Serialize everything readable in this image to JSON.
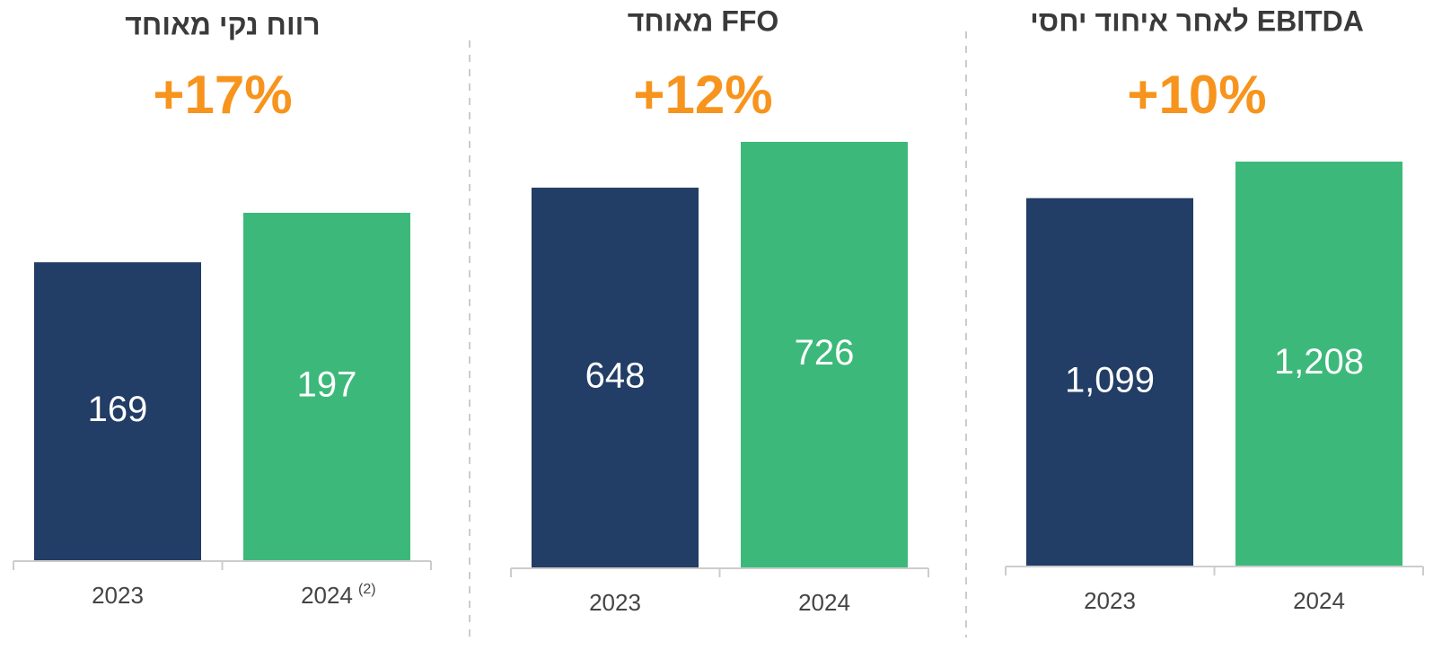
{
  "chart_data": [
    {
      "type": "bar",
      "title": "רווח נקי מאוחד",
      "growth": "+17%",
      "categories": [
        "2023",
        "2024"
      ],
      "footnotes": [
        null,
        "(2)"
      ],
      "values": [
        169,
        197
      ],
      "colors": [
        "#223d66",
        "#3cb97a"
      ]
    },
    {
      "type": "bar",
      "title": "FFO מאוחד",
      "growth": "+12%",
      "categories": [
        "2023",
        "2024"
      ],
      "values": [
        648,
        726
      ],
      "colors": [
        "#223d66",
        "#3cb97a"
      ]
    },
    {
      "type": "bar",
      "title": "EBITDA לאחר איחוד יחסי",
      "growth": "+10%",
      "categories": [
        "2023",
        "2024"
      ],
      "values": [
        1099,
        1208
      ],
      "value_labels": [
        "1,099",
        "1,208"
      ],
      "colors": [
        "#223d66",
        "#3cb97a"
      ]
    }
  ]
}
